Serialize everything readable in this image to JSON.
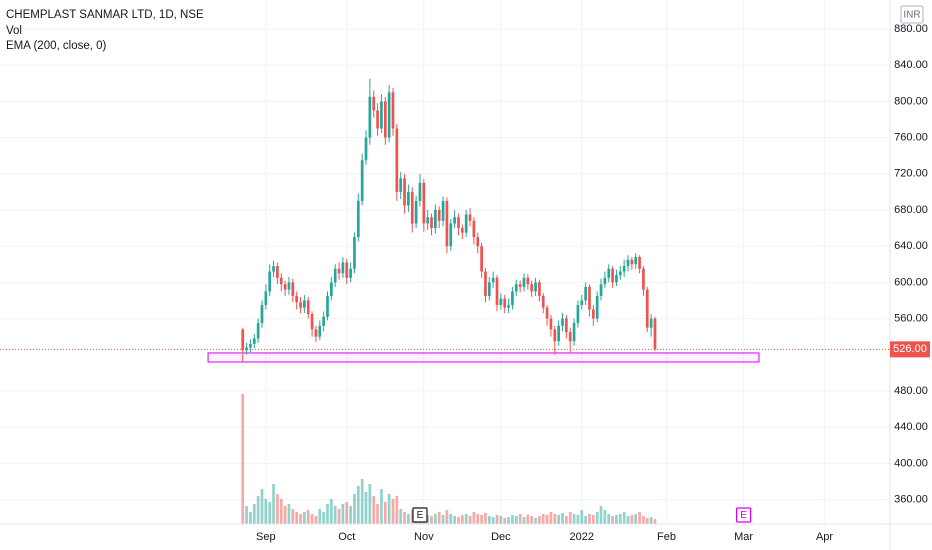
{
  "chart_data": {
    "type": "candlestick",
    "title": "CHEMPLAST SANMAR LTD, 1D, NSE",
    "indicators": [
      "Vol",
      "EMA (200, close, 0)"
    ],
    "currency": "INR",
    "up_color": "#26a69a",
    "down_color": "#ef5350",
    "grid": true,
    "xlim": [
      -63,
      168
    ],
    "xticks": [
      {
        "value": 6,
        "label": "Sep"
      },
      {
        "value": 27,
        "label": "Oct"
      },
      {
        "value": 47,
        "label": "Nov"
      },
      {
        "value": 67,
        "label": "Dec"
      },
      {
        "value": 88,
        "label": "2022"
      },
      {
        "value": 110,
        "label": "Feb"
      },
      {
        "value": 130,
        "label": "Mar"
      },
      {
        "value": 151,
        "label": "Apr"
      }
    ],
    "ylim": [
      333,
      912
    ],
    "yticks": [
      {
        "value": 880,
        "label": "880.00"
      },
      {
        "value": 840,
        "label": "840.00"
      },
      {
        "value": 800,
        "label": "800.00"
      },
      {
        "value": 760,
        "label": "760.00"
      },
      {
        "value": 720,
        "label": "720.00"
      },
      {
        "value": 680,
        "label": "680.00"
      },
      {
        "value": 640,
        "label": "640.00"
      },
      {
        "value": 600,
        "label": "600.00"
      },
      {
        "value": 560,
        "label": "560.00"
      },
      {
        "value": 480,
        "label": "480.00"
      },
      {
        "value": 440,
        "label": "440.00"
      },
      {
        "value": 400,
        "label": "400.00"
      },
      {
        "value": 360,
        "label": "360.00"
      }
    ],
    "last_price": {
      "value": 526,
      "label": "526.00",
      "color": "#ef5350"
    },
    "box": {
      "xlim": [
        -9,
        134
      ],
      "ylim": [
        512,
        522
      ],
      "color": "#d500f9"
    },
    "earnings": [
      {
        "x": 46,
        "label": "E",
        "color": "#131722"
      },
      {
        "x": 130,
        "label": "E",
        "color": "#d500f9"
      }
    ],
    "x": [
      0,
      1,
      2,
      3,
      4,
      5,
      6,
      7,
      8,
      9,
      10,
      11,
      12,
      13,
      14,
      15,
      16,
      17,
      18,
      19,
      20,
      21,
      22,
      23,
      24,
      25,
      26,
      27,
      28,
      29,
      30,
      31,
      32,
      33,
      34,
      35,
      36,
      37,
      38,
      39,
      40,
      41,
      42,
      43,
      44,
      45,
      46,
      47,
      48,
      49,
      50,
      51,
      52,
      53,
      54,
      55,
      56,
      57,
      58,
      59,
      60,
      61,
      62,
      63,
      64,
      65,
      66,
      67,
      68,
      69,
      70,
      71,
      72,
      73,
      74,
      75,
      76,
      77,
      78,
      79,
      80,
      81,
      82,
      83,
      84,
      85,
      86,
      87,
      88,
      89,
      90,
      91,
      92,
      93,
      94,
      95,
      96,
      97,
      98,
      99,
      100,
      101,
      102,
      103,
      104,
      105,
      106,
      107
    ],
    "open": [
      548,
      525,
      528,
      532,
      538,
      555,
      575,
      590,
      612,
      618,
      605,
      598,
      592,
      600,
      585,
      578,
      572,
      580,
      565,
      548,
      540,
      552,
      562,
      585,
      600,
      615,
      610,
      622,
      605,
      615,
      650,
      690,
      735,
      760,
      805,
      790,
      770,
      800,
      760,
      810,
      770,
      700,
      715,
      685,
      700,
      665,
      690,
      710,
      665,
      672,
      660,
      680,
      668,
      690,
      640,
      665,
      672,
      660,
      655,
      675,
      668,
      650,
      640,
      612,
      585,
      600,
      605,
      575,
      582,
      572,
      575,
      590,
      598,
      595,
      605,
      598,
      590,
      600,
      585,
      572,
      560,
      548,
      535,
      552,
      560,
      545,
      535,
      555,
      575,
      580,
      595,
      570,
      560,
      585,
      598,
      605,
      615,
      600,
      608,
      612,
      618,
      625,
      620,
      628,
      615,
      592,
      550,
      560
    ],
    "high": [
      550,
      533,
      537,
      543,
      560,
      580,
      598,
      620,
      624,
      622,
      610,
      602,
      606,
      604,
      590,
      584,
      586,
      584,
      568,
      552,
      558,
      568,
      590,
      606,
      620,
      622,
      628,
      626,
      622,
      655,
      698,
      742,
      768,
      825,
      812,
      798,
      808,
      805,
      818,
      815,
      775,
      722,
      720,
      708,
      705,
      696,
      720,
      714,
      680,
      676,
      686,
      684,
      695,
      694,
      670,
      680,
      676,
      664,
      680,
      682,
      672,
      655,
      644,
      616,
      606,
      612,
      608,
      588,
      586,
      582,
      595,
      603,
      602,
      610,
      609,
      602,
      605,
      603,
      588,
      575,
      564,
      552,
      558,
      566,
      564,
      550,
      560,
      580,
      586,
      600,
      598,
      575,
      590,
      604,
      612,
      620,
      618,
      614,
      618,
      625,
      630,
      628,
      632,
      630,
      618,
      595,
      565,
      562
    ],
    "low": [
      512,
      520,
      523,
      527,
      533,
      550,
      570,
      585,
      606,
      598,
      590,
      585,
      586,
      578,
      570,
      566,
      566,
      560,
      540,
      534,
      536,
      546,
      558,
      580,
      595,
      603,
      605,
      598,
      600,
      610,
      645,
      685,
      730,
      752,
      782,
      762,
      765,
      752,
      755,
      762,
      690,
      692,
      676,
      678,
      655,
      660,
      684,
      656,
      658,
      652,
      654,
      660,
      662,
      632,
      635,
      660,
      652,
      648,
      650,
      662,
      642,
      632,
      605,
      578,
      580,
      594,
      568,
      570,
      566,
      566,
      570,
      585,
      589,
      590,
      592,
      584,
      585,
      579,
      566,
      552,
      540,
      520,
      530,
      546,
      538,
      522,
      530,
      550,
      570,
      575,
      562,
      552,
      556,
      580,
      594,
      600,
      594,
      596,
      603,
      606,
      612,
      614,
      615,
      610,
      585,
      545,
      540,
      524
    ],
    "close": [
      525,
      528,
      532,
      538,
      555,
      575,
      590,
      612,
      618,
      605,
      598,
      592,
      600,
      585,
      578,
      572,
      580,
      565,
      548,
      540,
      552,
      562,
      585,
      600,
      615,
      610,
      622,
      605,
      615,
      650,
      690,
      735,
      760,
      805,
      790,
      770,
      800,
      760,
      810,
      770,
      700,
      715,
      685,
      700,
      665,
      690,
      710,
      665,
      672,
      660,
      680,
      668,
      690,
      640,
      665,
      672,
      660,
      655,
      675,
      668,
      650,
      640,
      612,
      585,
      600,
      605,
      575,
      582,
      572,
      575,
      590,
      598,
      595,
      605,
      598,
      590,
      600,
      585,
      572,
      560,
      548,
      535,
      552,
      560,
      545,
      535,
      555,
      575,
      580,
      595,
      570,
      560,
      585,
      598,
      605,
      615,
      600,
      608,
      612,
      618,
      625,
      620,
      628,
      615,
      592,
      550,
      560,
      526
    ],
    "volume": [
      130,
      18,
      12,
      20,
      28,
      35,
      25,
      22,
      40,
      30,
      25,
      18,
      20,
      15,
      12,
      10,
      12,
      14,
      10,
      8,
      15,
      12,
      20,
      25,
      18,
      15,
      20,
      22,
      18,
      30,
      38,
      45,
      32,
      40,
      28,
      20,
      35,
      22,
      30,
      25,
      28,
      15,
      12,
      10,
      14,
      8,
      12,
      10,
      9,
      8,
      10,
      12,
      9,
      14,
      10,
      8,
      7,
      9,
      10,
      8,
      12,
      10,
      9,
      11,
      8,
      7,
      9,
      8,
      6,
      7,
      9,
      8,
      10,
      7,
      9,
      8,
      6,
      8,
      10,
      9,
      12,
      10,
      9,
      11,
      8,
      12,
      10,
      9,
      14,
      8,
      10,
      9,
      12,
      18,
      14,
      10,
      8,
      9,
      10,
      12,
      8,
      9,
      10,
      12,
      8,
      6,
      7,
      5
    ]
  }
}
